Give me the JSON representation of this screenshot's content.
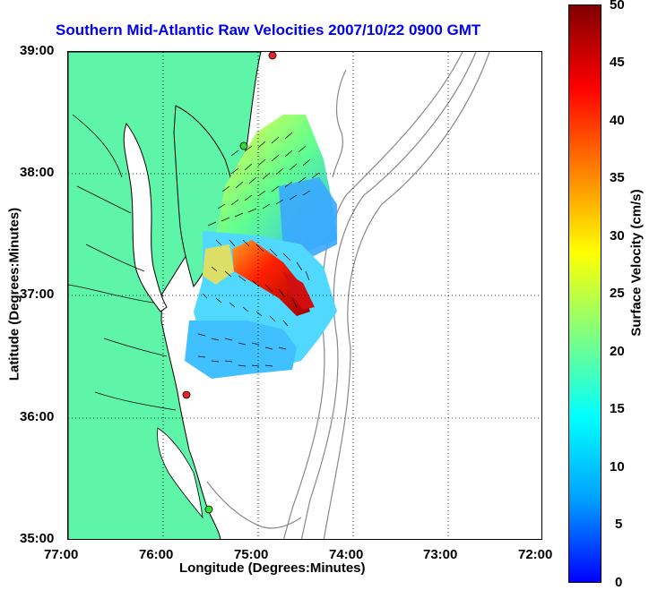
{
  "title": "Southern Mid-Atlantic Raw Velocities 2007/10/22 0900 GMT",
  "axes": {
    "xlabel": "Longitude (Degrees:Minutes)",
    "ylabel": "Latitude (Degrees:Minutes)",
    "x_ticks": [
      "77:00",
      "76:00",
      "75:00",
      "74:00",
      "73:00",
      "72:00"
    ],
    "y_ticks": [
      "39:00",
      "38:00",
      "37:00",
      "36:00",
      "35:00"
    ],
    "x_range_deg_w": [
      77,
      72
    ],
    "y_range_deg_n": [
      35,
      39
    ],
    "grid": "dotted"
  },
  "colorbar": {
    "label": "Surface Velocity (cm/s)",
    "ticks": [
      "50",
      "45",
      "40",
      "35",
      "30",
      "25",
      "20",
      "15",
      "10",
      "5",
      "0"
    ],
    "range": [
      0,
      50
    ],
    "colormap": [
      "#0000ff",
      "#00a0ff",
      "#00ffff",
      "#80ff80",
      "#ffff00",
      "#ff8000",
      "#ff0000",
      "#800000"
    ]
  },
  "colors": {
    "land": "#5ef5a9",
    "coast": "#000000",
    "bathymetry": "#888888",
    "station_active": "#33dd33",
    "station_inactive": "#ee2222"
  },
  "stations": [
    {
      "status": "inactive",
      "lon": -74.87,
      "lat": 39.02
    },
    {
      "status": "active",
      "lon": -75.15,
      "lat": 38.22
    },
    {
      "status": "inactive",
      "lon": -75.75,
      "lat": 36.18
    },
    {
      "status": "active",
      "lon": -75.5,
      "lat": 35.25
    }
  ]
}
